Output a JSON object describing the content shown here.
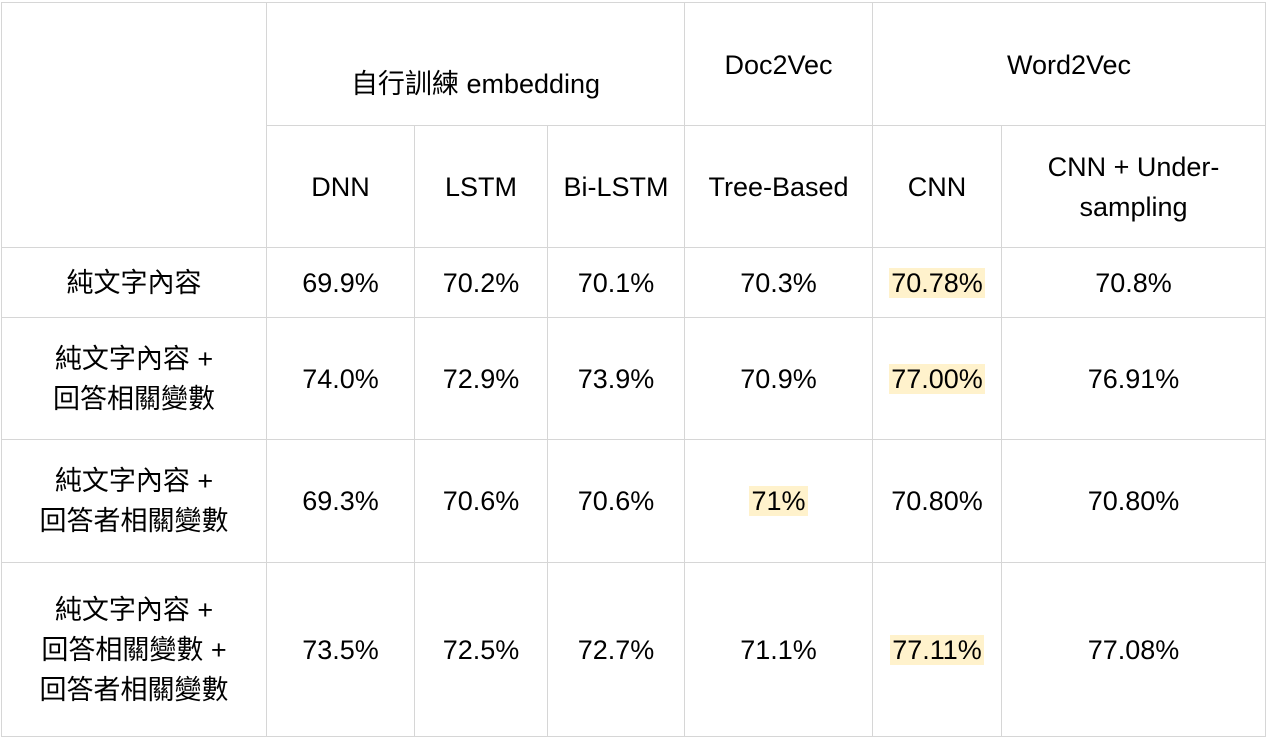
{
  "table": {
    "group_headers": {
      "self_trained": "自行訓練 embedding",
      "doc2vec": "Doc2Vec",
      "word2vec": "Word2Vec"
    },
    "model_headers": {
      "dnn": "DNN",
      "lstm": "LSTM",
      "bilstm": "Bi-LSTM",
      "tree": "Tree-Based",
      "cnn": "CNN",
      "cnn_us_line1": "CNN + Under-",
      "cnn_us_line2": "sampling"
    },
    "rows": [
      {
        "label_lines": [
          "純文字內容"
        ],
        "cells": [
          "69.9%",
          "70.2%",
          "70.1%",
          "70.3%",
          "70.78%",
          "70.8%"
        ]
      },
      {
        "label_lines": [
          "純文字內容 +",
          "回答相關變數"
        ],
        "cells": [
          "74.0%",
          "72.9%",
          "73.9%",
          "70.9%",
          "77.00%",
          "76.91%"
        ]
      },
      {
        "label_lines": [
          "純文字內容 +",
          "回答者相關變數"
        ],
        "cells": [
          "69.3%",
          "70.6%",
          "70.6%",
          "71%",
          "70.80%",
          "70.80%"
        ]
      },
      {
        "label_lines": [
          "純文字內容 +",
          "回答相關變數 +",
          "回答者相關變數"
        ],
        "cells": [
          "73.5%",
          "72.5%",
          "72.7%",
          "71.1%",
          "77.11%",
          "77.08%"
        ]
      }
    ],
    "highlighted_cells": [
      "r1c5",
      "r2c5",
      "r3c4",
      "r4c5"
    ],
    "highlight_color": "#fff2cc",
    "border_color": "#d6d6d6"
  }
}
